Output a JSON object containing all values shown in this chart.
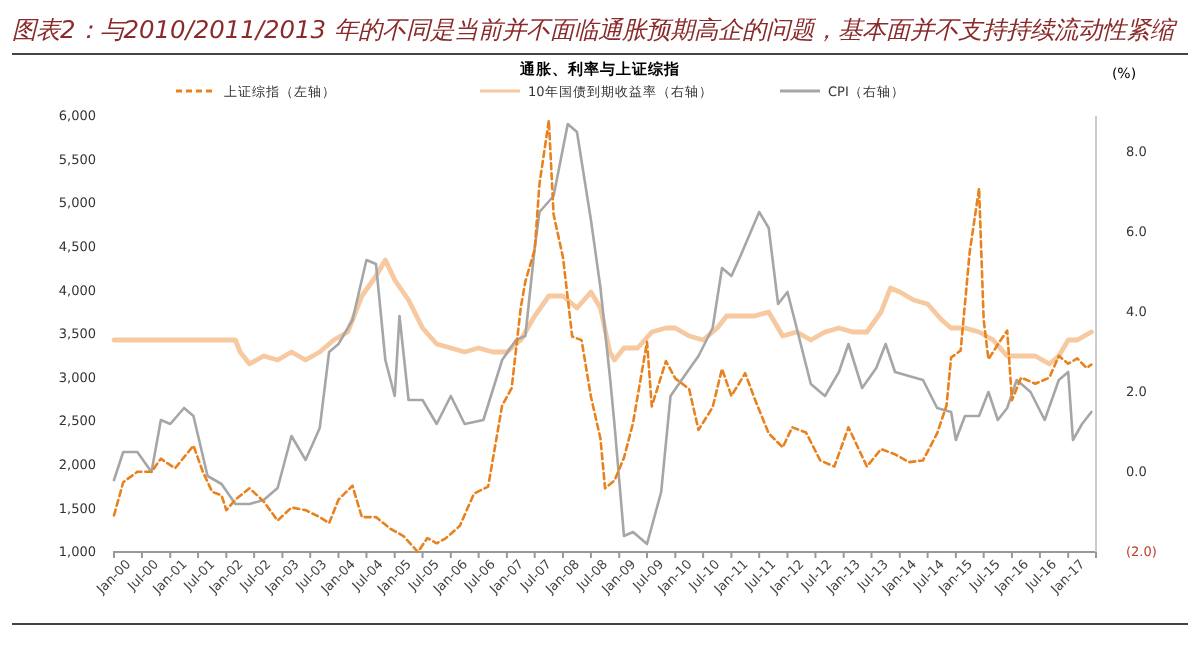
{
  "chart_data": {
    "type": "line",
    "title": "图表2：与2010/2011/2013 年的不同是当前并不面临通胀预期高企的问题，基本面并不支持持续流动性紧缩",
    "subtitle": "通胀、利率与上证综指",
    "y2label": "(%)",
    "legend": "top",
    "grid": false,
    "xlim": [
      "2000-01",
      "2017-07"
    ],
    "xticks": [
      {
        "value": "2000-01",
        "label": "Jan-00"
      },
      {
        "value": "2000-07",
        "label": "Jul-00"
      },
      {
        "value": "2001-01",
        "label": "Jan-01"
      },
      {
        "value": "2001-07",
        "label": "Jul-01"
      },
      {
        "value": "2002-01",
        "label": "Jan-02"
      },
      {
        "value": "2002-07",
        "label": "Jul-02"
      },
      {
        "value": "2003-01",
        "label": "Jan-03"
      },
      {
        "value": "2003-07",
        "label": "Jul-03"
      },
      {
        "value": "2004-01",
        "label": "Jan-04"
      },
      {
        "value": "2004-07",
        "label": "Jul-04"
      },
      {
        "value": "2005-01",
        "label": "Jan-05"
      },
      {
        "value": "2005-07",
        "label": "Jul-05"
      },
      {
        "value": "2006-01",
        "label": "Jan-06"
      },
      {
        "value": "2006-07",
        "label": "Jul-06"
      },
      {
        "value": "2007-01",
        "label": "Jan-07"
      },
      {
        "value": "2007-07",
        "label": "Jul-07"
      },
      {
        "value": "2008-01",
        "label": "Jan-08"
      },
      {
        "value": "2008-07",
        "label": "Jul-08"
      },
      {
        "value": "2009-01",
        "label": "Jan-09"
      },
      {
        "value": "2009-07",
        "label": "Jul-09"
      },
      {
        "value": "2010-01",
        "label": "Jan-10"
      },
      {
        "value": "2010-07",
        "label": "Jul-10"
      },
      {
        "value": "2011-01",
        "label": "Jan-11"
      },
      {
        "value": "2011-07",
        "label": "Jul-11"
      },
      {
        "value": "2012-01",
        "label": "Jan-12"
      },
      {
        "value": "2012-07",
        "label": "Jul-12"
      },
      {
        "value": "2013-01",
        "label": "Jan-13"
      },
      {
        "value": "2013-07",
        "label": "Jul-13"
      },
      {
        "value": "2014-01",
        "label": "Jan-14"
      },
      {
        "value": "2014-07",
        "label": "Jul-14"
      },
      {
        "value": "2015-01",
        "label": "Jan-15"
      },
      {
        "value": "2015-07",
        "label": "Jul-15"
      },
      {
        "value": "2016-01",
        "label": "Jan-16"
      },
      {
        "value": "2016-07",
        "label": "Jul-16"
      },
      {
        "value": "2017-01",
        "label": "Jan-17"
      }
    ],
    "ylim": [
      1000,
      6000
    ],
    "yticks": [
      {
        "value": 1000,
        "label": "1,000"
      },
      {
        "value": 1500,
        "label": "1,500"
      },
      {
        "value": 2000,
        "label": "2,000"
      },
      {
        "value": 2500,
        "label": "2,500"
      },
      {
        "value": 3000,
        "label": "3,000"
      },
      {
        "value": 3500,
        "label": "3,500"
      },
      {
        "value": 4000,
        "label": "4,000"
      },
      {
        "value": 4500,
        "label": "4,500"
      },
      {
        "value": 5000,
        "label": "5,000"
      },
      {
        "value": 5500,
        "label": "5,500"
      },
      {
        "value": 6000,
        "label": "6,000"
      }
    ],
    "y2lim": [
      -2,
      8.9
    ],
    "y2ticks": [
      {
        "value": -2,
        "label": "(2.0)"
      },
      {
        "value": 0,
        "label": "0.0"
      },
      {
        "value": 2,
        "label": "2.0"
      },
      {
        "value": 4,
        "label": "4.0"
      },
      {
        "value": 6,
        "label": "6.0"
      },
      {
        "value": 8,
        "label": "8.0"
      }
    ],
    "series": [
      {
        "name": "上证综指（左轴）",
        "color": "#e8821e",
        "line_style": "dashed",
        "x": [
          "2000-01",
          "2000-03",
          "2000-06",
          "2000-09",
          "2000-11",
          "2001-02",
          "2001-06",
          "2001-08",
          "2001-10",
          "2001-12",
          "2002-01",
          "2002-03",
          "2002-06",
          "2002-09",
          "2002-12",
          "2003-03",
          "2003-06",
          "2003-09",
          "2003-11",
          "2004-01",
          "2004-04",
          "2004-06",
          "2004-09",
          "2004-12",
          "2005-03",
          "2005-06",
          "2005-08",
          "2005-10",
          "2005-12",
          "2006-03",
          "2006-06",
          "2006-09",
          "2006-12",
          "2007-02",
          "2007-04",
          "2007-05",
          "2007-07",
          "2007-08",
          "2007-10",
          "2007-11",
          "2008-01",
          "2008-03",
          "2008-05",
          "2008-07",
          "2008-09",
          "2008-10",
          "2008-12",
          "2009-02",
          "2009-04",
          "2009-07",
          "2009-08",
          "2009-11",
          "2010-01",
          "2010-04",
          "2010-06",
          "2010-09",
          "2010-11",
          "2011-01",
          "2011-04",
          "2011-06",
          "2011-09",
          "2011-12",
          "2012-02",
          "2012-05",
          "2012-08",
          "2012-11",
          "2013-02",
          "2013-06",
          "2013-09",
          "2013-12",
          "2014-03",
          "2014-06",
          "2014-09",
          "2014-11",
          "2014-12",
          "2015-02",
          "2015-04",
          "2015-06",
          "2015-07",
          "2015-08",
          "2015-10",
          "2015-12",
          "2016-01",
          "2016-03",
          "2016-06",
          "2016-09",
          "2016-11",
          "2017-01",
          "2017-03",
          "2017-05",
          "2017-06"
        ],
        "values": [
          1420,
          1800,
          1920,
          1920,
          2070,
          1960,
          2220,
          1920,
          1690,
          1650,
          1480,
          1600,
          1730,
          1580,
          1360,
          1510,
          1480,
          1400,
          1330,
          1600,
          1760,
          1400,
          1400,
          1270,
          1180,
          1000,
          1160,
          1100,
          1160,
          1300,
          1670,
          1750,
          2680,
          2880,
          3800,
          4100,
          4470,
          5220,
          5950,
          4870,
          4380,
          3470,
          3430,
          2780,
          2300,
          1730,
          1820,
          2080,
          2480,
          3410,
          2670,
          3190,
          2990,
          2870,
          2400,
          2660,
          3100,
          2790,
          3050,
          2760,
          2360,
          2200,
          2430,
          2370,
          2050,
          1980,
          2430,
          1980,
          2180,
          2120,
          2030,
          2050,
          2360,
          2680,
          3230,
          3310,
          4440,
          5170,
          3660,
          3210,
          3380,
          3540,
          2740,
          3000,
          2930,
          3000,
          3250,
          3160,
          3220,
          3110,
          3150
        ]
      },
      {
        "name": "10年国债到期收益率（右轴）",
        "color": "#f7c9a0",
        "axis": "y2",
        "line_style": "solid",
        "x": [
          "2000-01",
          "2002-03",
          "2002-04",
          "2002-06",
          "2002-09",
          "2002-12",
          "2003-03",
          "2003-06",
          "2003-09",
          "2003-12",
          "2004-03",
          "2004-06",
          "2004-09",
          "2004-11",
          "2005-01",
          "2005-04",
          "2005-07",
          "2005-10",
          "2006-01",
          "2006-04",
          "2006-07",
          "2006-10",
          "2007-01",
          "2007-04",
          "2007-07",
          "2007-10",
          "2008-01",
          "2008-04",
          "2008-07",
          "2008-09",
          "2008-11",
          "2008-12",
          "2009-02",
          "2009-05",
          "2009-08",
          "2009-11",
          "2010-01",
          "2010-04",
          "2010-07",
          "2010-10",
          "2010-12",
          "2011-03",
          "2011-06",
          "2011-09",
          "2011-12",
          "2012-03",
          "2012-06",
          "2012-09",
          "2012-12",
          "2013-03",
          "2013-06",
          "2013-09",
          "2013-11",
          "2014-01",
          "2014-04",
          "2014-07",
          "2014-10",
          "2014-12",
          "2015-03",
          "2015-06",
          "2015-09",
          "2015-12",
          "2016-03",
          "2016-06",
          "2016-09",
          "2016-11",
          "2017-01",
          "2017-03",
          "2017-06"
        ],
        "values": [
          3.3,
          3.3,
          3.0,
          2.7,
          2.9,
          2.8,
          3.0,
          2.8,
          3.0,
          3.3,
          3.5,
          4.4,
          4.9,
          5.3,
          4.8,
          4.3,
          3.6,
          3.2,
          3.1,
          3.0,
          3.1,
          3.0,
          3.0,
          3.3,
          3.9,
          4.4,
          4.4,
          4.1,
          4.5,
          4.1,
          3.0,
          2.8,
          3.1,
          3.1,
          3.5,
          3.6,
          3.6,
          3.4,
          3.3,
          3.6,
          3.9,
          3.9,
          3.9,
          4.0,
          3.4,
          3.5,
          3.3,
          3.5,
          3.6,
          3.5,
          3.5,
          4.0,
          4.6,
          4.5,
          4.3,
          4.2,
          3.8,
          3.6,
          3.6,
          3.5,
          3.3,
          2.9,
          2.9,
          2.9,
          2.7,
          2.9,
          3.3,
          3.3,
          3.5
        ]
      },
      {
        "name": "CPI（右轴）",
        "color": "#a6a6a6",
        "axis": "y2",
        "line_style": "solid",
        "x": [
          "2000-01",
          "2000-03",
          "2000-06",
          "2000-09",
          "2000-11",
          "2001-01",
          "2001-04",
          "2001-06",
          "2001-09",
          "2001-12",
          "2002-03",
          "2002-06",
          "2002-09",
          "2002-12",
          "2003-03",
          "2003-06",
          "2003-09",
          "2003-11",
          "2004-01",
          "2004-04",
          "2004-07",
          "2004-09",
          "2004-11",
          "2005-01",
          "2005-02",
          "2005-04",
          "2005-07",
          "2005-10",
          "2006-01",
          "2006-04",
          "2006-08",
          "2006-12",
          "2007-03",
          "2007-05",
          "2007-07",
          "2007-08",
          "2007-11",
          "2008-02",
          "2008-04",
          "2008-07",
          "2008-09",
          "2008-11",
          "2008-12",
          "2009-02",
          "2009-04",
          "2009-07",
          "2009-10",
          "2009-12",
          "2010-03",
          "2010-06",
          "2010-09",
          "2010-11",
          "2011-01",
          "2011-03",
          "2011-07",
          "2011-09",
          "2011-11",
          "2012-01",
          "2012-03",
          "2012-06",
          "2012-09",
          "2012-12",
          "2013-02",
          "2013-05",
          "2013-08",
          "2013-10",
          "2013-12",
          "2014-03",
          "2014-06",
          "2014-09",
          "2014-12",
          "2015-01",
          "2015-03",
          "2015-06",
          "2015-08",
          "2015-10",
          "2015-12",
          "2016-02",
          "2016-05",
          "2016-08",
          "2016-11",
          "2017-01",
          "2017-02",
          "2017-04",
          "2017-06"
        ],
        "values": [
          -0.2,
          0.5,
          0.5,
          0.0,
          1.3,
          1.2,
          1.6,
          1.4,
          -0.1,
          -0.3,
          -0.8,
          -0.8,
          -0.7,
          -0.4,
          0.9,
          0.3,
          1.1,
          3.0,
          3.2,
          3.8,
          5.3,
          5.2,
          2.8,
          1.9,
          3.9,
          1.8,
          1.8,
          1.2,
          1.9,
          1.2,
          1.3,
          2.8,
          3.3,
          3.4,
          5.6,
          6.5,
          6.9,
          8.7,
          8.5,
          6.3,
          4.6,
          2.4,
          1.2,
          -1.6,
          -1.5,
          -1.8,
          -0.5,
          1.9,
          2.4,
          2.9,
          3.6,
          5.1,
          4.9,
          5.4,
          6.5,
          6.1,
          4.2,
          4.5,
          3.6,
          2.2,
          1.9,
          2.5,
          3.2,
          2.1,
          2.6,
          3.2,
          2.5,
          2.4,
          2.3,
          1.6,
          1.5,
          0.8,
          1.4,
          1.4,
          2.0,
          1.3,
          1.6,
          2.3,
          2.0,
          1.3,
          2.3,
          2.5,
          0.8,
          1.2,
          1.5
        ]
      }
    ]
  }
}
